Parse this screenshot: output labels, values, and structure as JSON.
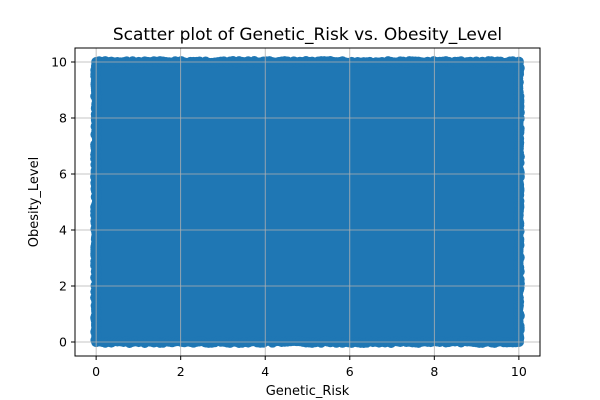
{
  "chart_data": {
    "type": "scatter",
    "title": "Scatter plot of Genetic_Risk vs. Obesity_Level",
    "xlabel": "Genetic_Risk",
    "ylabel": "Obesity_Level",
    "xlim": [
      -0.5,
      10.5
    ],
    "ylim": [
      -0.5,
      10.5
    ],
    "x_ticks": [
      0,
      2,
      4,
      6,
      8,
      10
    ],
    "y_ticks": [
      0,
      2,
      4,
      6,
      8,
      10
    ],
    "grid": true,
    "legend": "none",
    "x_range_of_points": [
      0,
      10
    ],
    "y_range_of_points": [
      0,
      10
    ],
    "series": [
      {
        "color": "#1f77b4"
      }
    ],
    "point_density": "dense, points cover the full range of both axes"
  }
}
